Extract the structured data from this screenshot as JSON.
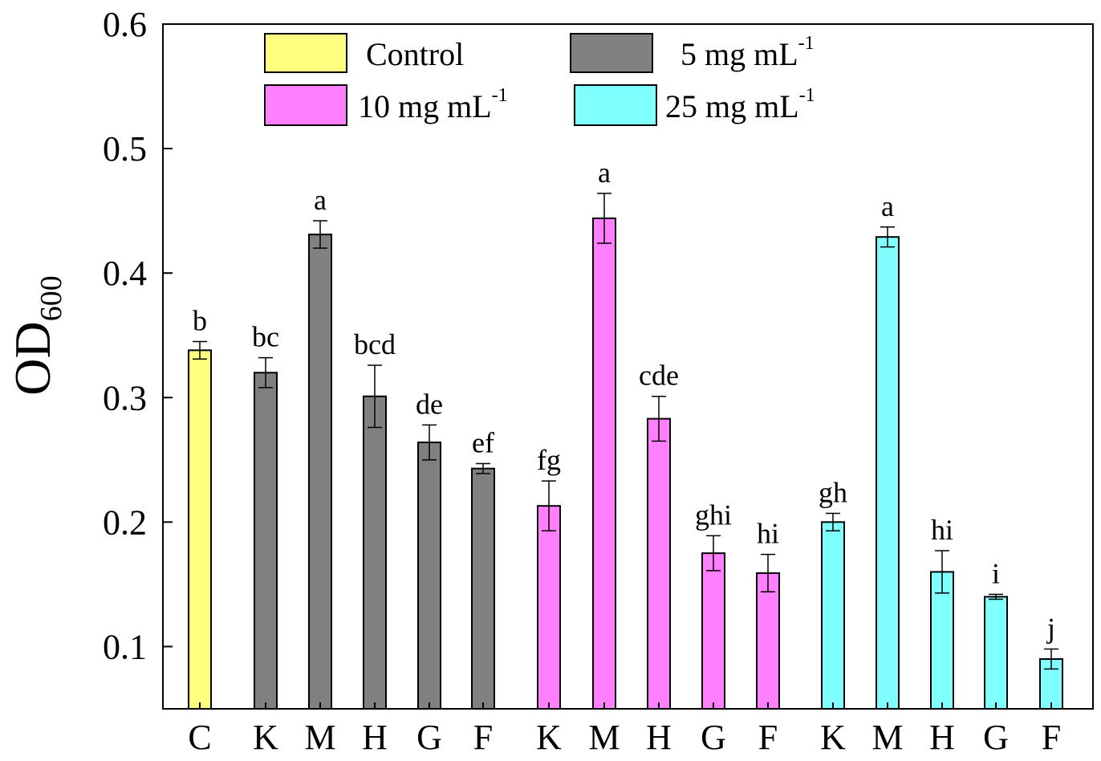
{
  "chart_data": {
    "type": "bar",
    "ylabel": "OD",
    "ylabel_subscript": "600",
    "ylim": [
      0.05,
      0.6
    ],
    "y_ticks": [
      "0.1",
      "0.2",
      "0.3",
      "0.4",
      "0.5",
      "0.6"
    ],
    "categories": [
      "C",
      "K",
      "M",
      "H",
      "G",
      "F",
      "K",
      "M",
      "H",
      "G",
      "F",
      "K",
      "M",
      "H",
      "G",
      "F"
    ],
    "groups": [
      0,
      1,
      1,
      1,
      1,
      1,
      2,
      2,
      2,
      2,
      2,
      3,
      3,
      3,
      3,
      3
    ],
    "values": [
      0.338,
      0.32,
      0.431,
      0.301,
      0.264,
      0.243,
      0.213,
      0.444,
      0.283,
      0.175,
      0.159,
      0.2,
      0.429,
      0.16,
      0.14,
      0.09
    ],
    "errors": [
      0.007,
      0.012,
      0.011,
      0.025,
      0.014,
      0.004,
      0.02,
      0.02,
      0.018,
      0.014,
      0.015,
      0.007,
      0.008,
      0.017,
      0.002,
      0.008
    ],
    "significance": [
      "b",
      "bc",
      "a",
      "bcd",
      "de",
      "ef",
      "fg",
      "a",
      "cde",
      "ghi",
      "hi",
      "gh",
      "a",
      "hi",
      "i",
      "j"
    ],
    "series": [
      {
        "name": "Control",
        "unit": "",
        "color": "#ffff80"
      },
      {
        "name": "5 mg mL",
        "unit": "-1",
        "color": "#808080"
      },
      {
        "name": "10 mg mL",
        "unit": "-1",
        "color": "#ff80ff"
      },
      {
        "name": "25 mg mL",
        "unit": "-1",
        "color": "#80ffff"
      }
    ],
    "legend_position": "top",
    "grid": false
  }
}
